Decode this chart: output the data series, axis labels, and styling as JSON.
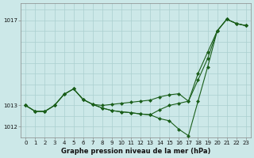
{
  "title": "Graphe pression niveau de la mer (hPa)",
  "bg_color": "#cce8e8",
  "grid_color": "#aacfcf",
  "line_color": "#1a5e1a",
  "hours": [
    0,
    1,
    2,
    3,
    4,
    5,
    6,
    7,
    8,
    9,
    10,
    11,
    12,
    13,
    14,
    15,
    16,
    17,
    18,
    19,
    20,
    21,
    22,
    23
  ],
  "p_main": [
    1013.0,
    1012.72,
    1012.72,
    1013.0,
    1013.52,
    1013.78,
    1013.28,
    1013.05,
    1012.88,
    1012.76,
    1012.7,
    1012.66,
    1012.6,
    1012.56,
    1012.38,
    1012.28,
    1011.88,
    1011.58,
    1013.2,
    1014.8,
    1016.5,
    1017.05,
    1016.85,
    1016.75
  ],
  "p_upper": [
    1013.0,
    1012.72,
    1012.72,
    1013.0,
    1013.52,
    1013.78,
    1013.28,
    1013.05,
    1013.0,
    1013.05,
    1013.1,
    1013.15,
    1013.2,
    1013.25,
    1013.4,
    1013.5,
    1013.55,
    1013.2,
    1014.5,
    1015.5,
    1016.5,
    1017.05,
    1016.85,
    1016.75
  ],
  "p_lower": [
    1013.0,
    1012.72,
    1012.72,
    1013.0,
    1013.52,
    1013.78,
    1013.28,
    1013.05,
    1012.88,
    1012.76,
    1012.7,
    1012.66,
    1012.6,
    1012.56,
    1012.8,
    1013.0,
    1013.1,
    1013.2,
    1014.2,
    1015.2,
    1016.5,
    1017.05,
    1016.85,
    1016.75
  ],
  "ylim": [
    1011.5,
    1017.8
  ],
  "ytick_vals": [
    1012,
    1013,
    1017
  ],
  "ytick_labels": [
    "1012",
    "1013",
    "1017"
  ],
  "xlim": [
    -0.5,
    23.5
  ],
  "marker_size": 2.5,
  "linewidth": 0.8,
  "title_fontsize": 6.0,
  "tick_fontsize": 5.0
}
